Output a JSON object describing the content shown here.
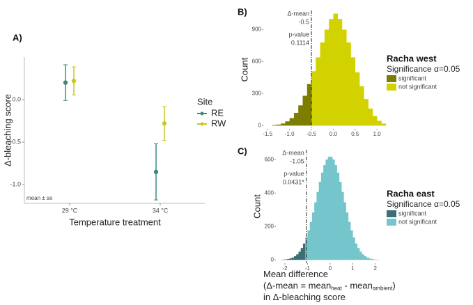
{
  "chart_data": [
    {
      "type": "pointrange",
      "panel_label": "A)",
      "ylabel": "Δ-bleaching score",
      "xlabel": "Temperature treatment",
      "annotation": "mean ± se",
      "legend_title": "Site",
      "categories": [
        "29 °C",
        "34 °C"
      ],
      "series": [
        {
          "name": "RE",
          "color": "#3b8a82",
          "values": [
            0.2,
            -0.85
          ],
          "errors": [
            0.21,
            0.33
          ]
        },
        {
          "name": "RW",
          "color": "#c8c81e",
          "values": [
            0.22,
            -0.28
          ],
          "errors": [
            0.165,
            0.2
          ]
        }
      ],
      "ylim": [
        -1.22,
        0.5
      ],
      "yticks": [
        {
          "value": 0,
          "label": "0.0"
        },
        -0.5,
        {
          "value": -1,
          "label": "-1.0"
        }
      ]
    },
    {
      "type": "histogram",
      "panel_label": "B)",
      "ylabel": "Count",
      "legend_title": "Racha west",
      "legend_subtitle": "Significance α=0.05",
      "mean_label": "Δ-mean",
      "mean_diff": -0.5,
      "p_label": "p-value",
      "p_value": "0.1114",
      "bins": [
        -1.4,
        -1.3,
        -1.2,
        -1.1,
        -1.0,
        -0.9,
        -0.8,
        -0.7,
        -0.6,
        -0.5,
        -0.4,
        -0.3,
        -0.2,
        -0.1,
        0.0,
        0.1,
        0.2,
        0.3,
        0.4,
        0.5,
        0.6,
        0.7,
        0.8,
        0.9,
        1.0,
        1.1,
        1.2
      ],
      "series": [
        {
          "name": "significant",
          "color": "#7d7d00",
          "values": [
            5,
            10,
            20,
            40,
            70,
            120,
            190,
            280,
            390,
            null,
            null,
            null,
            null,
            null,
            null,
            null,
            null,
            null,
            null,
            null,
            null,
            null,
            null,
            null,
            null,
            null
          ]
        },
        {
          "name": "not significant",
          "color": "#d2d200",
          "values": [
            null,
            null,
            null,
            null,
            null,
            null,
            null,
            null,
            null,
            510,
            640,
            780,
            900,
            1000,
            1050,
            1000,
            900,
            780,
            640,
            500,
            370,
            250,
            160,
            90,
            45,
            20
          ]
        }
      ],
      "xlim": [
        -1.6,
        1.3
      ],
      "xticks": [
        -1.5,
        {
          "value": -1,
          "label": "-1.0"
        },
        -0.5,
        {
          "value": 0,
          "label": "0.0"
        },
        0.5,
        {
          "value": 1,
          "label": "1.0"
        }
      ],
      "ylim": [
        -30,
        1080
      ],
      "yticks": [
        0,
        300,
        600,
        900
      ]
    },
    {
      "type": "histogram",
      "panel_label": "C)",
      "ylabel": "Count",
      "legend_title": "Racha east",
      "legend_subtitle": "Significance α=0.05",
      "mean_label": "Δ-mean",
      "mean_diff": -1.05,
      "p_label": "p-value",
      "p_value": "0.0431*",
      "xlabel_lines": [
        [
          "Mean difference"
        ],
        [
          "(Δ-mean = mean",
          "heat",
          " - mean",
          "ambient",
          ")"
        ],
        [
          "in Δ-bleaching score"
        ]
      ],
      "bins": [
        -2.2,
        -2.1,
        -2.0,
        -1.9,
        -1.8,
        -1.7,
        -1.6,
        -1.5,
        -1.4,
        -1.3,
        -1.2,
        -1.1,
        -1.0,
        -0.9,
        -0.8,
        -0.7,
        -0.6,
        -0.5,
        -0.4,
        -0.3,
        -0.2,
        -0.1,
        0.0,
        0.1,
        0.2,
        0.3,
        0.4,
        0.5,
        0.6,
        0.7,
        0.8,
        0.9,
        1.0,
        1.1,
        1.2,
        1.3,
        1.4,
        1.5,
        1.6,
        1.7,
        1.8,
        1.9,
        2.0,
        2.1,
        2.2
      ],
      "series": [
        {
          "name": "significant",
          "color": "#3e6e75",
          "values": [
            1,
            2,
            3,
            5,
            9,
            14,
            22,
            33,
            49,
            71,
            98,
            null,
            null,
            null,
            null,
            null,
            null,
            null,
            null,
            null,
            null,
            null,
            null,
            null,
            null,
            null,
            null,
            null,
            null,
            null,
            null,
            null,
            null,
            null,
            null,
            null,
            null,
            null,
            null,
            null,
            null,
            null,
            null,
            null
          ]
        },
        {
          "name": "not significant",
          "color": "#74c6cc",
          "values": [
            null,
            null,
            null,
            null,
            null,
            null,
            null,
            null,
            null,
            null,
            null,
            134,
            177,
            228,
            284,
            345,
            407,
            468,
            523,
            568,
            601,
            618,
            618,
            601,
            568,
            523,
            468,
            407,
            345,
            284,
            228,
            177,
            134,
            98,
            71,
            49,
            33,
            22,
            14,
            9,
            5,
            3,
            2,
            1
          ]
        }
      ],
      "xlim": [
        -2.4,
        2.5
      ],
      "xticks": [
        -2,
        -1,
        0,
        1,
        2
      ],
      "ylim": [
        -20,
        660
      ],
      "yticks": [
        0,
        200,
        400,
        600
      ]
    }
  ]
}
